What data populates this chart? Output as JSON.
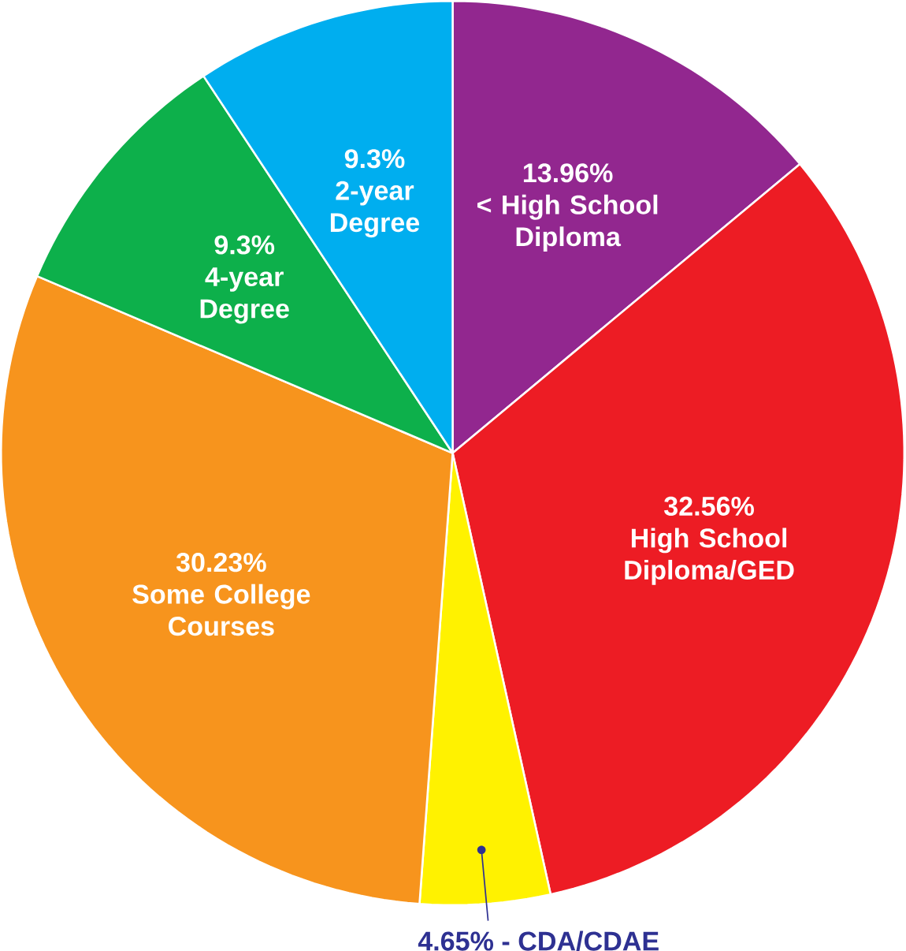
{
  "chart_data": {
    "type": "pie",
    "categories": [
      "< High School Diploma",
      "High School Diploma/GED",
      "CDA/CDAE",
      "Some College Courses",
      "4-year Degree",
      "2-year Degree"
    ],
    "values": [
      13.96,
      32.56,
      4.65,
      30.23,
      9.3,
      9.3
    ],
    "value_labels": [
      "13.96%",
      "32.56%",
      "4.65% -",
      "30.23%",
      "9.3%",
      "9.3%"
    ],
    "colors": [
      "#92278f",
      "#ed1c24",
      "#fff200",
      "#f7941d",
      "#0db04b",
      "#00aeef"
    ]
  }
}
